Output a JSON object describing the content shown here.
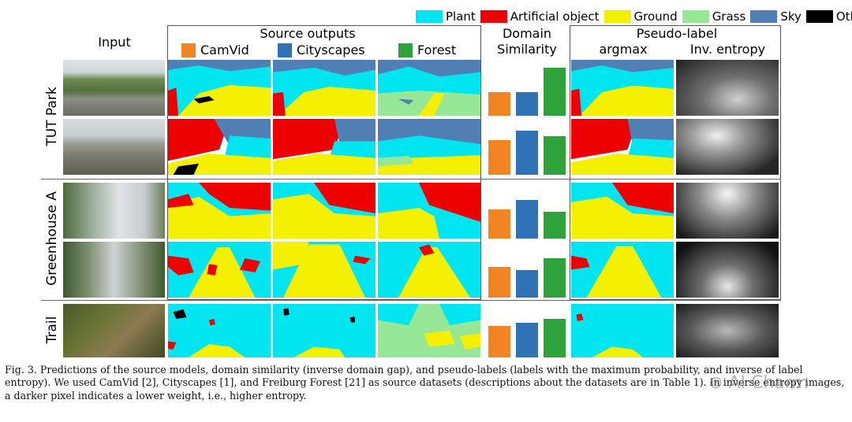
{
  "legend": [
    {
      "label": "Plant",
      "color": "#00e5f0"
    },
    {
      "label": "Artificial object",
      "color": "#ee0000"
    },
    {
      "label": "Ground",
      "color": "#f4f000"
    },
    {
      "label": "Grass",
      "color": "#96e896"
    },
    {
      "label": "Sky",
      "color": "#4f7fb5"
    },
    {
      "label": "Other",
      "color": "#000000"
    }
  ],
  "headers": {
    "input": "Input",
    "source_outputs": "Source outputs",
    "domain_1": "Domain",
    "domain_2": "Similarity",
    "pseudo_label": "Pseudo-label",
    "argmax": "argmax",
    "inv_entropy": "Inv. entropy"
  },
  "sources": [
    {
      "label": "CamVid",
      "color": "#f28522"
    },
    {
      "label": "Cityscapes",
      "color": "#2f72b5"
    },
    {
      "label": "Forest",
      "color": "#2ea33a"
    }
  ],
  "row_labels": {
    "tut_park": "TUT Park",
    "greenhouse": "Greenhouse A",
    "trail": "Trail"
  },
  "chart_data": {
    "type": "bar",
    "title": "Domain Similarity",
    "categories": [
      "CamVid",
      "Cityscapes",
      "Forest"
    ],
    "series": [
      {
        "name": "TUT Park (row 1)",
        "values": [
          0.5,
          0.5,
          1.0
        ]
      },
      {
        "name": "TUT Park (row 2)",
        "values": [
          0.72,
          0.92,
          0.8
        ]
      },
      {
        "name": "Greenhouse A (row 1)",
        "values": [
          0.6,
          0.8,
          0.55
        ]
      },
      {
        "name": "Greenhouse A (row 2)",
        "values": [
          0.64,
          0.57,
          0.82
        ]
      },
      {
        "name": "Trail (row 1)",
        "values": [
          0.68,
          0.75,
          0.84
        ]
      }
    ],
    "ylim": [
      0,
      1.1
    ]
  },
  "caption": {
    "text": "Fig. 3.   Predictions of the source models, domain similarity (inverse domain gap), and pseudo-labels (labels with the maximum probability, and inverse of label entropy). We used CamVid [2], Cityscapes [1], and Freiburg Forest [21] as source datasets (descriptions about the datasets are in Table 1). In inverse entropy images, a darker pixel indicates a lower weight, i.e., higher entropy."
  }
}
